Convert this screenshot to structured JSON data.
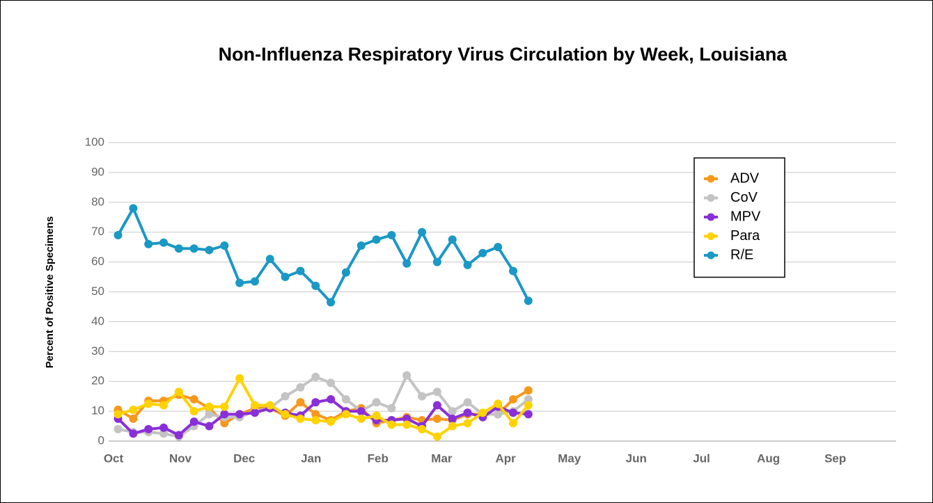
{
  "chart_data": {
    "type": "line",
    "title": "Non-Influenza Respiratory Virus Circulation by Week, Louisiana",
    "y_label": "Percent of Positive Specimens",
    "x": [
      0,
      1,
      2,
      3,
      4,
      5,
      6,
      7,
      8,
      9,
      10,
      11,
      12,
      13,
      14,
      15,
      16,
      17,
      18,
      19,
      20,
      21,
      22,
      23,
      24,
      25,
      26,
      27
    ],
    "xlim": [
      -0.3,
      51.2
    ],
    "xticks": [
      {
        "value": -0.3,
        "label": "Oct"
      },
      {
        "value": 4.1,
        "label": "Nov"
      },
      {
        "value": 8.3,
        "label": "Dec"
      },
      {
        "value": 12.7,
        "label": "Jan"
      },
      {
        "value": 17.1,
        "label": "Feb"
      },
      {
        "value": 21.3,
        "label": "Mar"
      },
      {
        "value": 25.5,
        "label": "Apr"
      },
      {
        "value": 29.7,
        "label": "May"
      },
      {
        "value": 34.1,
        "label": "Jun"
      },
      {
        "value": 38.4,
        "label": "Jul"
      },
      {
        "value": 42.8,
        "label": "Aug"
      },
      {
        "value": 47.2,
        "label": "Sep"
      }
    ],
    "ylim": [
      0,
      100
    ],
    "yticks": [
      0,
      10,
      20,
      30,
      40,
      50,
      60,
      70,
      80,
      90,
      100
    ],
    "grid": true,
    "legend": "upper right",
    "series": [
      {
        "name": "ADV",
        "color": "#f7981d",
        "values": [
          10.5,
          7.5,
          13.5,
          13.5,
          15.5,
          14,
          11,
          6,
          9,
          11,
          11,
          8.5,
          13,
          9,
          7,
          10,
          11,
          6,
          7,
          8,
          7,
          7.5,
          7,
          9,
          9,
          9,
          14,
          17
        ]
      },
      {
        "name": "CoV",
        "color": "#c3c3c3",
        "values": [
          4,
          3,
          3,
          2.5,
          1.5,
          5,
          9,
          8,
          8,
          10,
          11,
          15,
          18,
          21.5,
          19.5,
          14,
          10,
          13,
          11,
          22,
          15,
          16.5,
          10,
          13,
          9,
          9,
          10,
          14
        ]
      },
      {
        "name": "MPV",
        "color": "#8a2fd8",
        "values": [
          7.5,
          2.5,
          4,
          4.5,
          2,
          6.5,
          5,
          9,
          9,
          9.5,
          11,
          9.5,
          8.5,
          13,
          14,
          10,
          10,
          7,
          7,
          7.5,
          5,
          12,
          7.5,
          9.5,
          8,
          11.5,
          9.5,
          9
        ]
      },
      {
        "name": "Para",
        "color": "#ffd200",
        "values": [
          9,
          10.5,
          12.5,
          12,
          16.5,
          10,
          11.5,
          11.5,
          21,
          12,
          12,
          9,
          7.5,
          7,
          6.5,
          9,
          7.5,
          8.5,
          5.5,
          5.5,
          4,
          1.5,
          5,
          6,
          9.5,
          12.5,
          6,
          12
        ]
      },
      {
        "name": "R/E",
        "color": "#1a98c6",
        "values": [
          69,
          78,
          66,
          66.5,
          64.5,
          64.5,
          64,
          65.5,
          53,
          53.5,
          61,
          55,
          57,
          52,
          46.5,
          56.5,
          65.5,
          67.5,
          69,
          59.5,
          70,
          60,
          67.5,
          59,
          63,
          65,
          57,
          47
        ]
      }
    ]
  }
}
